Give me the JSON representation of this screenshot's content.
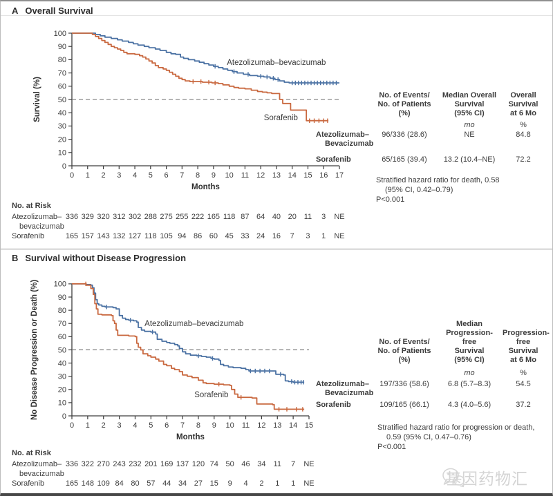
{
  "figure": {
    "panelA": {
      "label": "A",
      "title": "Overall Survival",
      "table": {
        "col1_header": "No. of Events/\nNo. of Patients\n(%)",
        "col2_header": "Median Overall\nSurvival\n(95% CI)",
        "col3_header": "Overall\nSurvival\nat 6 Mo",
        "col2_unit": "mo",
        "col3_unit": "%",
        "rows": [
          {
            "label": "Atezolizumab–",
            "label2": "Bevacizumab",
            "events": "96/336 (28.6)",
            "median": "NE",
            "at6mo": "84.8"
          },
          {
            "label": "Sorafenib",
            "label2": "",
            "events": "65/165 (39.4)",
            "median": "13.2 (10.4–NE)",
            "at6mo": "72.2"
          }
        ]
      },
      "footnote": {
        "line1": "Stratified hazard ratio for death, 0.58",
        "line2": "(95% CI, 0.42–0.79)",
        "line3": "P<0.001"
      },
      "at_risk": {
        "header": "No. at Risk",
        "rows": [
          {
            "label": "Atezolizumab–",
            "label2": "bevacizumab",
            "values": [
              "336",
              "329",
              "320",
              "312",
              "302",
              "288",
              "275",
              "255",
              "222",
              "165",
              "118",
              "87",
              "64",
              "40",
              "20",
              "11",
              "3",
              "NE"
            ]
          },
          {
            "label": "Sorafenib",
            "values": [
              "165",
              "157",
              "143",
              "132",
              "127",
              "118",
              "105",
              "94",
              "86",
              "60",
              "45",
              "33",
              "24",
              "16",
              "7",
              "3",
              "1",
              "NE"
            ]
          }
        ]
      }
    },
    "panelB": {
      "label": "B",
      "title": "Survival without Disease Progression",
      "table": {
        "col1_header": "No. of Events/\nNo. of Patients\n(%)",
        "col2_header": "Median\nProgression-\nfree\nSurvival\n(95% CI)",
        "col3_header": "Progression-\nfree\nSurvival\nat 6 Mo",
        "col2_unit": "mo",
        "col3_unit": "%",
        "rows": [
          {
            "label": "Atezolizumab–",
            "label2": "Bevacizumab",
            "events": "197/336 (58.6)",
            "median": "6.8 (5.7–8.3)",
            "at6mo": "54.5"
          },
          {
            "label": "Sorafenib",
            "label2": "",
            "events": "109/165 (66.1)",
            "median": "4.3 (4.0–5.6)",
            "at6mo": "37.2"
          }
        ]
      },
      "footnote": {
        "line1": "Stratified hazard ratio for progression or death,",
        "line2": "0.59 (95% CI, 0.47–0.76)",
        "line3": "P<0.001"
      },
      "at_risk": {
        "header": "No. at Risk",
        "rows": [
          {
            "label": "Atezolizumab–",
            "label2": "bevacizumab",
            "values": [
              "336",
              "322",
              "270",
              "243",
              "232",
              "201",
              "169",
              "137",
              "120",
              "74",
              "50",
              "46",
              "34",
              "11",
              "7",
              "NE"
            ]
          },
          {
            "label": "Sorafenib",
            "values": [
              "165",
              "148",
              "109",
              "84",
              "80",
              "57",
              "44",
              "34",
              "27",
              "15",
              "9",
              "4",
              "2",
              "1",
              "1",
              "NE"
            ]
          }
        ]
      }
    },
    "watermark": {
      "icon": "wechat-icon",
      "text": "基因药物汇"
    }
  },
  "chart_data": [
    {
      "type": "line",
      "subtype": "kaplan-meier-step",
      "title": "Overall Survival",
      "xlabel": "Months",
      "ylabel": "Survival (%)",
      "xlim": [
        0,
        17
      ],
      "ylim": [
        0,
        100
      ],
      "xtick_step": 1,
      "ytick_step": 10,
      "refline": 50,
      "grid": false,
      "series": [
        {
          "name": "Atezolizumab–bevacizumab",
          "color": "#4a71a3",
          "label_at": [
            9.85,
            76
          ],
          "points": [
            [
              0,
              100
            ],
            [
              1.2,
              100
            ],
            [
              1.5,
              99
            ],
            [
              1.8,
              98
            ],
            [
              2.1,
              97
            ],
            [
              2.5,
              96
            ],
            [
              2.9,
              95
            ],
            [
              3.2,
              94
            ],
            [
              3.6,
              93
            ],
            [
              3.9,
              92
            ],
            [
              4.2,
              91
            ],
            [
              4.6,
              90
            ],
            [
              4.9,
              89
            ],
            [
              5.3,
              88
            ],
            [
              5.6,
              87
            ],
            [
              6.0,
              85.5
            ],
            [
              6.3,
              84.5
            ],
            [
              6.6,
              84
            ],
            [
              6.9,
              82
            ],
            [
              7.1,
              81
            ],
            [
              7.4,
              80
            ],
            [
              7.8,
              79
            ],
            [
              8.1,
              78
            ],
            [
              8.4,
              77
            ],
            [
              8.7,
              76
            ],
            [
              9.0,
              75
            ],
            [
              9.3,
              74
            ],
            [
              9.6,
              73
            ],
            [
              9.9,
              72
            ],
            [
              10.2,
              71
            ],
            [
              10.5,
              70
            ],
            [
              10.9,
              69
            ],
            [
              11.3,
              68
            ],
            [
              11.8,
              67.5
            ],
            [
              12.2,
              67
            ],
            [
              12.6,
              66
            ],
            [
              12.9,
              65
            ],
            [
              13.2,
              64
            ],
            [
              13.5,
              63
            ],
            [
              13.8,
              62.5
            ],
            [
              17.0,
              62.5
            ]
          ],
          "censors": [
            9.1,
            10.3,
            11.2,
            12.0,
            12.4,
            12.8,
            13.1,
            14.0,
            14.2,
            14.4,
            14.6,
            14.8,
            15.0,
            15.2,
            15.4,
            15.6,
            15.8,
            16.0,
            16.2,
            16.4,
            16.6,
            16.8
          ]
        },
        {
          "name": "Sorafenib",
          "color": "#c9683f",
          "label_at": [
            12.2,
            34.4
          ],
          "points": [
            [
              0,
              100
            ],
            [
              1.1,
              100
            ],
            [
              1.3,
              99
            ],
            [
              1.5,
              97.5
            ],
            [
              1.7,
              96
            ],
            [
              1.9,
              94.5
            ],
            [
              2.1,
              93
            ],
            [
              2.3,
              91.5
            ],
            [
              2.5,
              90
            ],
            [
              2.7,
              89
            ],
            [
              2.9,
              88
            ],
            [
              3.1,
              87
            ],
            [
              3.3,
              85.5
            ],
            [
              3.5,
              84.5
            ],
            [
              4.0,
              84
            ],
            [
              4.3,
              83
            ],
            [
              4.5,
              82
            ],
            [
              4.7,
              80.5
            ],
            [
              4.9,
              79
            ],
            [
              5.1,
              77.5
            ],
            [
              5.3,
              75.5
            ],
            [
              5.5,
              74
            ],
            [
              5.8,
              73
            ],
            [
              6.0,
              72
            ],
            [
              6.2,
              70.5
            ],
            [
              6.4,
              69
            ],
            [
              6.6,
              67.5
            ],
            [
              6.8,
              66
            ],
            [
              7.0,
              65
            ],
            [
              7.2,
              64
            ],
            [
              7.5,
              63.5
            ],
            [
              8.3,
              63
            ],
            [
              8.9,
              62.5
            ],
            [
              9.3,
              62
            ],
            [
              9.6,
              61
            ],
            [
              10.0,
              60
            ],
            [
              10.3,
              59
            ],
            [
              10.6,
              58.5
            ],
            [
              11.0,
              58
            ],
            [
              11.4,
              57
            ],
            [
              11.8,
              56
            ],
            [
              12.1,
              55.5
            ],
            [
              12.4,
              55
            ],
            [
              12.7,
              54.5
            ],
            [
              13.2,
              50
            ],
            [
              13.4,
              47
            ],
            [
              13.9,
              42
            ],
            [
              14.9,
              34
            ],
            [
              16.3,
              34
            ]
          ],
          "censors": [
            7.7,
            8.2,
            8.7,
            9.1,
            15.1,
            15.4,
            15.7,
            16.0,
            16.25
          ]
        }
      ]
    },
    {
      "type": "line",
      "subtype": "kaplan-meier-step",
      "title": "Survival without Disease Progression",
      "xlabel": "Months",
      "ylabel": "No Disease Progression or Death (%)",
      "xlim": [
        0,
        15
      ],
      "ylim": [
        0,
        100
      ],
      "xtick_step": 1,
      "ytick_step": 10,
      "refline": 50,
      "grid": false,
      "series": [
        {
          "name": "Atezolizumab–bevacizumab",
          "color": "#4a71a3",
          "label_at": [
            4.6,
            68
          ],
          "points": [
            [
              0,
              100
            ],
            [
              0.9,
              99.5
            ],
            [
              1.2,
              99
            ],
            [
              1.3,
              97
            ],
            [
              1.4,
              93
            ],
            [
              1.5,
              88
            ],
            [
              1.6,
              85
            ],
            [
              1.7,
              84
            ],
            [
              1.9,
              83
            ],
            [
              2.1,
              82.5
            ],
            [
              2.6,
              82
            ],
            [
              2.8,
              81
            ],
            [
              3.0,
              76
            ],
            [
              3.2,
              74
            ],
            [
              3.4,
              73
            ],
            [
              3.6,
              72.5
            ],
            [
              3.9,
              72
            ],
            [
              4.1,
              71
            ],
            [
              4.2,
              67
            ],
            [
              4.4,
              65
            ],
            [
              4.6,
              64
            ],
            [
              5.0,
              63.5
            ],
            [
              5.3,
              62
            ],
            [
              5.4,
              58
            ],
            [
              5.7,
              56.5
            ],
            [
              6.0,
              55.5
            ],
            [
              6.2,
              55
            ],
            [
              6.5,
              54
            ],
            [
              6.7,
              53
            ],
            [
              6.8,
              51
            ],
            [
              7.0,
              48.5
            ],
            [
              7.2,
              47
            ],
            [
              7.5,
              46
            ],
            [
              7.9,
              45.5
            ],
            [
              8.2,
              45
            ],
            [
              8.5,
              44.5
            ],
            [
              8.8,
              43.5
            ],
            [
              9.0,
              43
            ],
            [
              9.3,
              42
            ],
            [
              9.4,
              39
            ],
            [
              9.6,
              38
            ],
            [
              9.9,
              37
            ],
            [
              10.2,
              36.5
            ],
            [
              10.7,
              36
            ],
            [
              11.0,
              35
            ],
            [
              11.2,
              34
            ],
            [
              12.8,
              34
            ],
            [
              12.9,
              31.5
            ],
            [
              13.4,
              31
            ],
            [
              13.5,
              26.5
            ],
            [
              13.7,
              26
            ],
            [
              14.0,
              25.5
            ],
            [
              14.7,
              25.5
            ]
          ],
          "censors": [
            2.2,
            3.7,
            5.1,
            8.0,
            8.9,
            11.3,
            11.6,
            11.9,
            12.2,
            12.5,
            13.2,
            13.9,
            14.1,
            14.3,
            14.5,
            14.65
          ]
        },
        {
          "name": "Sorafenib",
          "color": "#c9683f",
          "label_at": [
            7.75,
            14
          ],
          "points": [
            [
              0,
              100
            ],
            [
              0.9,
              99
            ],
            [
              1.2,
              96.5
            ],
            [
              1.35,
              92
            ],
            [
              1.45,
              85
            ],
            [
              1.55,
              81
            ],
            [
              1.65,
              77
            ],
            [
              1.9,
              76.5
            ],
            [
              2.5,
              76
            ],
            [
              2.6,
              72
            ],
            [
              2.7,
              70
            ],
            [
              2.8,
              65
            ],
            [
              2.9,
              61
            ],
            [
              3.6,
              60.5
            ],
            [
              4.0,
              60
            ],
            [
              4.1,
              55
            ],
            [
              4.2,
              52
            ],
            [
              4.35,
              50
            ],
            [
              4.5,
              47
            ],
            [
              4.8,
              45.5
            ],
            [
              5.0,
              44.5
            ],
            [
              5.3,
              43
            ],
            [
              5.5,
              41.5
            ],
            [
              5.8,
              39
            ],
            [
              6.0,
              38
            ],
            [
              6.3,
              36
            ],
            [
              6.5,
              35
            ],
            [
              6.8,
              33.5
            ],
            [
              7.0,
              31
            ],
            [
              7.3,
              30
            ],
            [
              7.6,
              29
            ],
            [
              8.0,
              27
            ],
            [
              8.3,
              25
            ],
            [
              8.5,
              24.5
            ],
            [
              9.0,
              24
            ],
            [
              9.6,
              23.5
            ],
            [
              10.0,
              23
            ],
            [
              10.1,
              20
            ],
            [
              10.3,
              16.5
            ],
            [
              10.5,
              14
            ],
            [
              11.4,
              13.5
            ],
            [
              11.7,
              9
            ],
            [
              12.7,
              8.5
            ],
            [
              12.8,
              5
            ],
            [
              14.7,
              5
            ]
          ],
          "censors": [
            0.88,
            9.3,
            10.7,
            13.1,
            13.6,
            14.2,
            14.6
          ]
        }
      ]
    }
  ]
}
